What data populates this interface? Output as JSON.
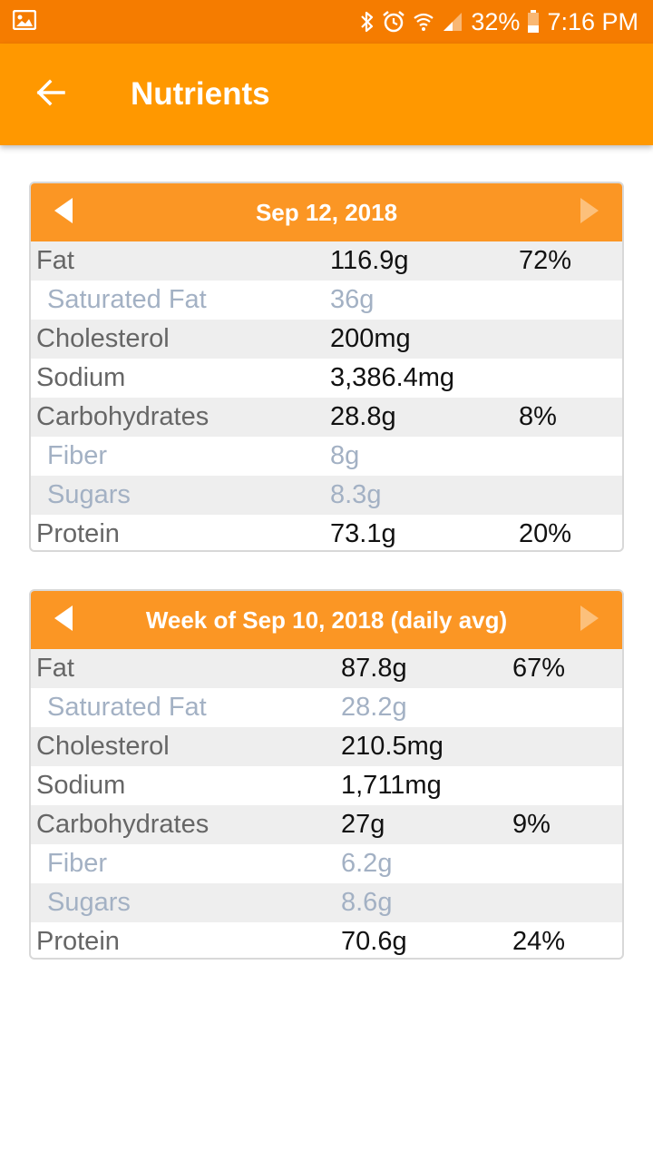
{
  "status_bar": {
    "battery": "32%",
    "time": "7:16 PM",
    "icons": [
      "image-icon",
      "bluetooth-icon",
      "alarm-icon",
      "wifi-icon",
      "signal-icon",
      "battery-icon"
    ]
  },
  "app_bar": {
    "title": "Nutrients",
    "back_icon": "arrow-back-icon"
  },
  "colors": {
    "status_bar": "#f57c00",
    "app_bar": "#ff9800",
    "card_header": "#fb9624",
    "row_shade": "#eeeeee",
    "label": "#666666",
    "sub_label": "#a3b1c4"
  },
  "day_card": {
    "title": "Sep 12, 2018",
    "rows": [
      {
        "label": "Fat",
        "amount": "116.9g",
        "pct": "72%"
      },
      {
        "label": "Saturated Fat",
        "amount": "36g",
        "pct": ""
      },
      {
        "label": "Cholesterol",
        "amount": "200mg",
        "pct": ""
      },
      {
        "label": "Sodium",
        "amount": "3,386.4mg",
        "pct": ""
      },
      {
        "label": "Carbohydrates",
        "amount": "28.8g",
        "pct": "8%"
      },
      {
        "label": "Fiber",
        "amount": "8g",
        "pct": ""
      },
      {
        "label": "Sugars",
        "amount": "8.3g",
        "pct": ""
      },
      {
        "label": "Protein",
        "amount": "73.1g",
        "pct": "20%"
      }
    ]
  },
  "week_card": {
    "title": "Week of Sep 10, 2018 (daily avg)",
    "rows": [
      {
        "label": "Fat",
        "amount": "87.8g",
        "pct": "67%"
      },
      {
        "label": "Saturated Fat",
        "amount": "28.2g",
        "pct": ""
      },
      {
        "label": "Cholesterol",
        "amount": "210.5mg",
        "pct": ""
      },
      {
        "label": "Sodium",
        "amount": "1,711mg",
        "pct": ""
      },
      {
        "label": "Carbohydrates",
        "amount": "27g",
        "pct": "9%"
      },
      {
        "label": "Fiber",
        "amount": "6.2g",
        "pct": ""
      },
      {
        "label": "Sugars",
        "amount": "8.6g",
        "pct": ""
      },
      {
        "label": "Protein",
        "amount": "70.6g",
        "pct": "24%"
      }
    ]
  }
}
